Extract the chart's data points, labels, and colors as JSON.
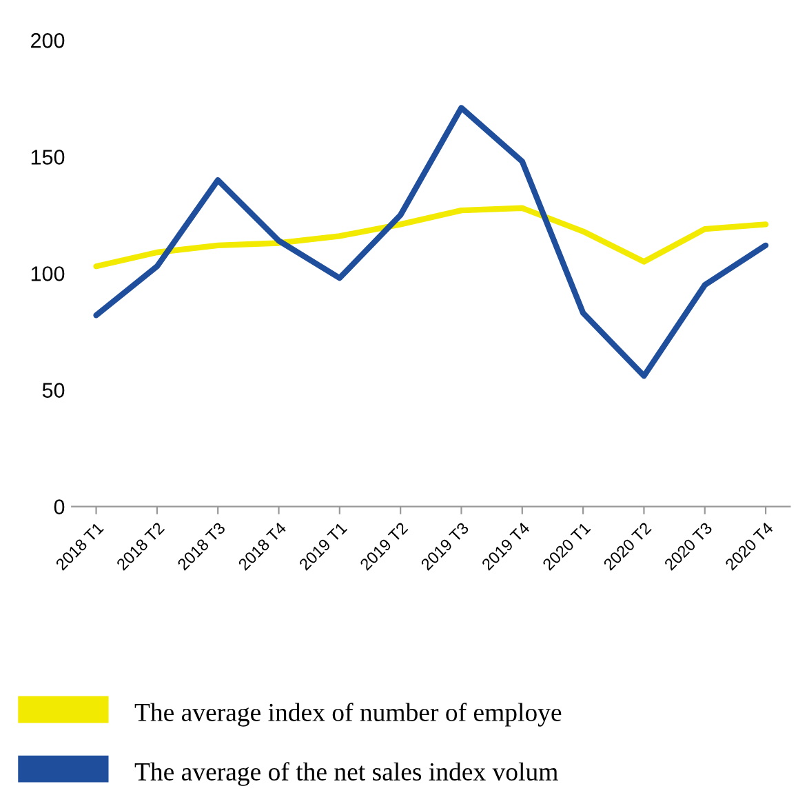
{
  "chart_data": {
    "type": "line",
    "categories": [
      "2018 T1",
      "2018 T2",
      "2018 T3",
      "2018 T4",
      "2019 T1",
      "2019 T2",
      "2019 T3",
      "2019 T4",
      "2020 T1",
      "2020 T2",
      "2020 T3",
      "2020 T4"
    ],
    "series": [
      {
        "name": "The average index of number of employe",
        "color": "#f2ea00",
        "values": [
          103,
          109,
          112,
          113,
          116,
          121,
          127,
          128,
          118,
          105,
          119,
          121
        ]
      },
      {
        "name": "The average of the net sales index volum",
        "color": "#1f4e9c",
        "values": [
          82,
          103,
          140,
          114,
          98,
          125,
          171,
          148,
          83,
          56,
          95,
          112
        ]
      }
    ],
    "ylim": [
      0,
      200
    ],
    "yticks": [
      0,
      50,
      100,
      150,
      200
    ],
    "grid": false,
    "legend": "bottom",
    "marker": "none",
    "line_style": "solid"
  }
}
